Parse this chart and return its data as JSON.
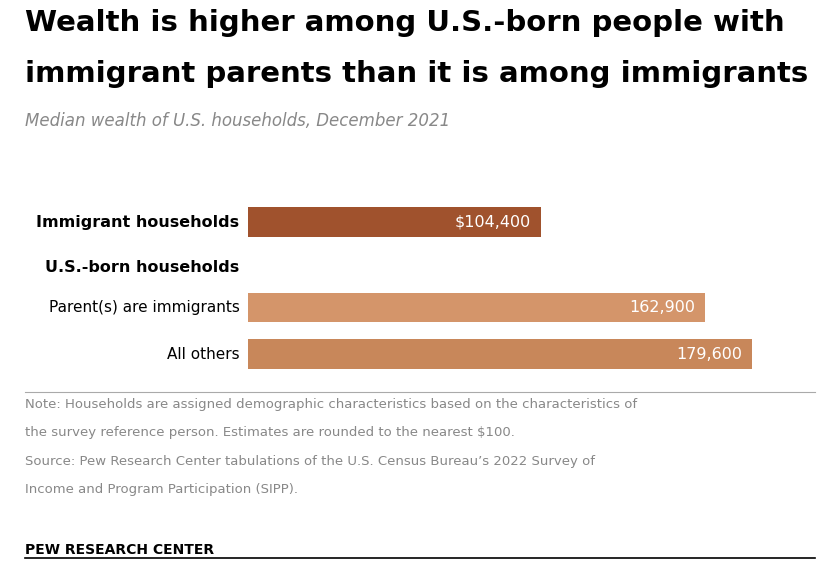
{
  "title_line1": "Wealth is higher among U.S.-born people with",
  "title_line2": "immigrant parents than it is among immigrants",
  "subtitle": "Median wealth of U.S. households, December 2021",
  "values": [
    104400,
    162900,
    179600
  ],
  "labels": [
    "$104,400",
    "162,900",
    "179,600"
  ],
  "bar_colors": [
    "#a0522d",
    "#d4956a",
    "#c8875a"
  ],
  "xlim": [
    0,
    205000
  ],
  "note_line1": "Note: Households are assigned demographic characteristics based on the characteristics of",
  "note_line2": "the survey reference person. Estimates are rounded to the nearest $100.",
  "source_line1": "Source: Pew Research Center tabulations of the U.S. Census Bureau’s 2022 Survey of",
  "source_line2": "Income and Program Participation (SIPP).",
  "footer": "PEW RESEARCH CENTER",
  "background_color": "#ffffff"
}
